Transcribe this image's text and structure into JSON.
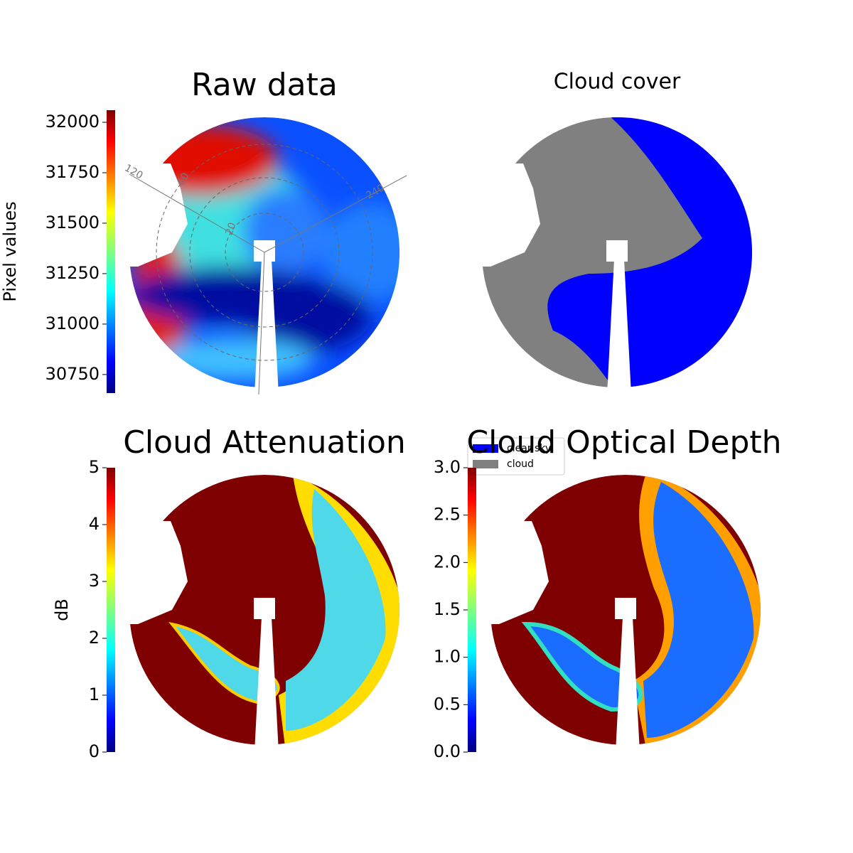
{
  "chart_data": [
    {
      "type": "image",
      "title": "Raw data",
      "colorbar_label": "Pixel values",
      "colormap": "jet",
      "ylim": [
        30658,
        32060
      ],
      "yticks": [
        30750,
        31000,
        31250,
        31500,
        31750,
        32000
      ],
      "annotations": [
        "120",
        "60",
        "20",
        "240"
      ]
    },
    {
      "type": "image",
      "title": "Cloud cover",
      "legend": [
        {
          "name": "clear sky",
          "color": "#0000ff"
        },
        {
          "name": "cloud",
          "color": "#808080"
        }
      ]
    },
    {
      "type": "image",
      "title": "Cloud Attenuation",
      "colorbar_label": "dB",
      "colormap": "jet",
      "ylim": [
        0,
        5
      ],
      "yticks": [
        0,
        1,
        2,
        3,
        4,
        5
      ]
    },
    {
      "type": "image",
      "title": "Cloud Optical Depth",
      "colormap": "jet",
      "ylim": [
        0,
        3
      ],
      "yticks": [
        {
          "value": 0,
          "label": "0.0"
        },
        0.5,
        {
          "value": 1,
          "label": "1.0"
        },
        1.5,
        {
          "value": 2,
          "label": "2.0"
        },
        2.5,
        {
          "value": 3,
          "label": "3.0"
        }
      ]
    }
  ]
}
